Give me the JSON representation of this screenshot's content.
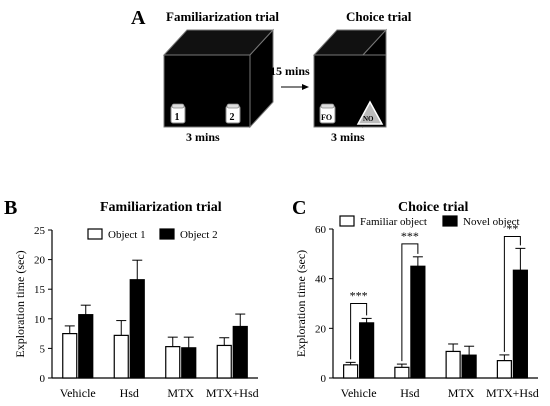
{
  "panel_a": {
    "label": "A",
    "familiarization_title": "Familiarization trial",
    "choice_title": "Choice trial",
    "interval_label": "15 mins",
    "duration_left": "3 mins",
    "duration_right": "3 mins",
    "object_1_label": "1",
    "object_2_label": "2",
    "familiar_object_label": "FO",
    "novel_object_label": "NO"
  },
  "chart_data": [
    {
      "type": "bar",
      "panel_label": "B",
      "title": "Familiarization trial",
      "xlabel": "",
      "ylabel": "Exploration time (sec)",
      "categories": [
        "Vehicle",
        "Hsd",
        "MTX",
        "MTX+Hsd"
      ],
      "ylim": [
        0,
        25
      ],
      "yticks": [
        "0",
        "5",
        "10",
        "15",
        "20",
        "25"
      ],
      "legend_position": "top-center",
      "grid": false,
      "series": [
        {
          "name": "Object 1",
          "fill": "#ffffff",
          "values": [
            7.5,
            7.2,
            5.3,
            5.5
          ],
          "errors": [
            1.3,
            2.5,
            1.6,
            1.3
          ]
        },
        {
          "name": "Object 2",
          "fill": "#000000",
          "values": [
            10.7,
            16.6,
            5.1,
            8.7
          ],
          "errors": [
            1.6,
            3.3,
            1.8,
            2.1
          ]
        }
      ],
      "significance": []
    },
    {
      "type": "bar",
      "panel_label": "C",
      "title": "Choice trial",
      "xlabel": "",
      "ylabel": "Exploration time (sec)",
      "categories": [
        "Vehicle",
        "Hsd",
        "MTX",
        "MTX+Hsd"
      ],
      "ylim": [
        0,
        60
      ],
      "yticks": [
        "0",
        "20",
        "40",
        "60"
      ],
      "legend_position": "top",
      "grid": false,
      "series": [
        {
          "name": "Familiar object",
          "fill": "#ffffff",
          "values": [
            5.3,
            4.3,
            10.7,
            7
          ],
          "errors": [
            1.0,
            1.3,
            3.0,
            2.3
          ]
        },
        {
          "name": "Novel object",
          "fill": "#000000",
          "values": [
            22.2,
            45,
            9.2,
            43.4
          ],
          "errors": [
            1.8,
            3.8,
            3.6,
            8.8
          ]
        }
      ],
      "significance": [
        {
          "category": 0,
          "label": "***",
          "y": 30
        },
        {
          "category": 1,
          "label": "***",
          "y": 54
        },
        {
          "category": 3,
          "label": "**",
          "y": 57
        }
      ]
    }
  ]
}
